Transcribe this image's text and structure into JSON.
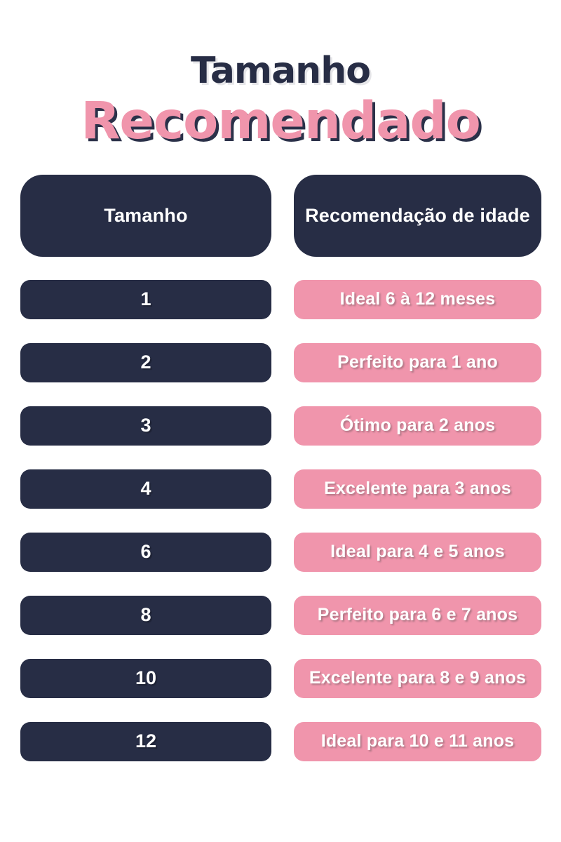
{
  "title": {
    "line1": "Tamanho",
    "line2": "Recomendado"
  },
  "table": {
    "headers": {
      "size": "Tamanho",
      "age": "Recomendação de idade"
    },
    "rows": [
      {
        "size": "1",
        "recommendation": "Ideal 6 à 12 meses"
      },
      {
        "size": "2",
        "recommendation": "Perfeito para 1 ano"
      },
      {
        "size": "3",
        "recommendation": "Ótimo para 2 anos"
      },
      {
        "size": "4",
        "recommendation": "Excelente para 3 anos"
      },
      {
        "size": "6",
        "recommendation": "Ideal para 4 e 5 anos"
      },
      {
        "size": "8",
        "recommendation": "Perfeito para 6 e 7 anos"
      },
      {
        "size": "10",
        "recommendation": "Excelente para 8 e 9 anos"
      },
      {
        "size": "12",
        "recommendation": "Ideal para 10 e 11 anos"
      }
    ]
  },
  "colors": {
    "navy": "#272d45",
    "pink": "#f095ac",
    "text_on_fills": "#ffffff",
    "background": "#ffffff"
  }
}
